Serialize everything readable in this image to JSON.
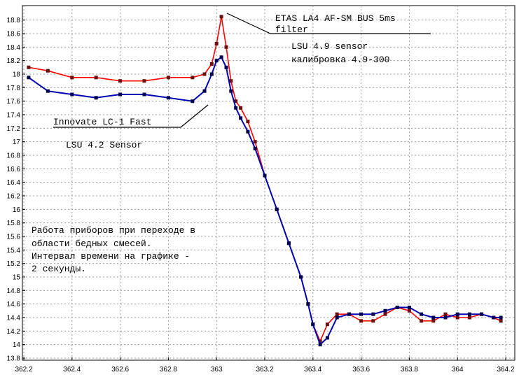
{
  "chart_data": {
    "type": "line",
    "title": "",
    "xlabel": "",
    "ylabel": "",
    "xlim": [
      362.2,
      364.2
    ],
    "ylim": [
      13.8,
      18.9
    ],
    "grid": true,
    "x_ticks": [
      "362.2",
      "362.4",
      "362.6",
      "362.8",
      "363",
      "363.2",
      "363.4",
      "363.6",
      "363.8",
      "364",
      "364.2"
    ],
    "y_ticks": [
      "13.8",
      "14",
      "14.2",
      "14.4",
      "14.6",
      "14.8",
      "15",
      "15.2",
      "15.4",
      "15.6",
      "15.8",
      "16",
      "16.2",
      "16.4",
      "16.6",
      "16.8",
      "17",
      "17.2",
      "17.4",
      "17.6",
      "17.8",
      "18",
      "18.2",
      "18.4",
      "18.6",
      "18.8"
    ],
    "series": [
      {
        "name": "",
        "line_color": "#ff0000",
        "marker_color": "#6a1010",
        "x": [
          362.22,
          362.3,
          362.4,
          362.5,
          362.6,
          362.7,
          362.8,
          362.9,
          362.95,
          362.98,
          363.0,
          363.02,
          363.04,
          363.06,
          363.08,
          363.1,
          363.13,
          363.16,
          363.2,
          363.25,
          363.3,
          363.35,
          363.38,
          363.4,
          363.43,
          363.46,
          363.5,
          363.55,
          363.6,
          363.65,
          363.7,
          363.75,
          363.8,
          363.85,
          363.9,
          363.95,
          364.0,
          364.05,
          364.1,
          364.15,
          364.18
        ],
        "y": [
          18.1,
          18.05,
          17.95,
          17.95,
          17.9,
          17.9,
          17.95,
          17.95,
          18.0,
          18.15,
          18.45,
          18.85,
          18.4,
          17.9,
          17.6,
          17.5,
          17.3,
          17.0,
          16.5,
          16.0,
          15.5,
          15.0,
          14.6,
          14.3,
          14.05,
          14.3,
          14.45,
          14.45,
          14.35,
          14.35,
          14.45,
          14.55,
          14.5,
          14.35,
          14.35,
          14.45,
          14.4,
          14.4,
          14.45,
          14.4,
          14.35
        ]
      },
      {
        "name": "",
        "line_color": "#0000b0",
        "marker_color": "#000050",
        "x": [
          362.22,
          362.3,
          362.4,
          362.5,
          362.6,
          362.7,
          362.8,
          362.9,
          362.95,
          362.98,
          363.0,
          363.02,
          363.04,
          363.06,
          363.08,
          363.1,
          363.13,
          363.16,
          363.2,
          363.25,
          363.3,
          363.35,
          363.38,
          363.4,
          363.43,
          363.46,
          363.5,
          363.55,
          363.6,
          363.65,
          363.7,
          363.75,
          363.8,
          363.85,
          363.9,
          363.95,
          364.0,
          364.05,
          364.1,
          364.15,
          364.18
        ],
        "y": [
          17.95,
          17.75,
          17.7,
          17.65,
          17.7,
          17.7,
          17.65,
          17.6,
          17.75,
          18.0,
          18.2,
          18.25,
          18.1,
          17.75,
          17.5,
          17.35,
          17.15,
          16.9,
          16.5,
          16.0,
          15.5,
          15.0,
          14.6,
          14.3,
          14.0,
          14.1,
          14.4,
          14.45,
          14.45,
          14.45,
          14.5,
          14.55,
          14.55,
          14.45,
          14.4,
          14.4,
          14.45,
          14.45,
          14.45,
          14.4,
          14.4
        ]
      }
    ],
    "annotations": {
      "etas": "ETAS LA4 AF-SM BUS 5ms filter",
      "lsu49": "LSU 4.9 sensor",
      "calib": "калибровка 4.9-300",
      "lc1": "Innovate LC-1 Fast",
      "lsu42": "LSU 4.2 Sensor",
      "note": [
        "Работа приборов при переходе в",
        "области бедных смесей.",
        "Интервал времени на графике -",
        "2 секунды."
      ]
    }
  }
}
